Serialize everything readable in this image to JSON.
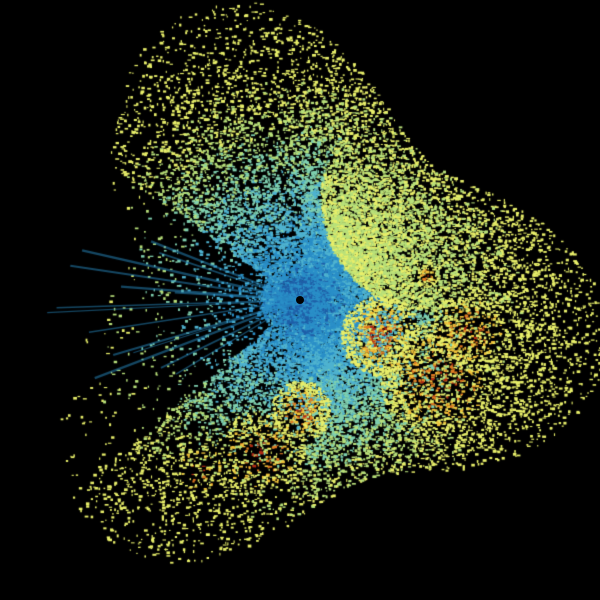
{
  "image": {
    "kind": "radar-scan",
    "background_color": "#000000",
    "palette": [
      "#1f5fa8",
      "#2a8fc8",
      "#4fb3d0",
      "#7fd0b0",
      "#b8e07a",
      "#e8ef6a",
      "#f0c23a",
      "#e07a22",
      "#b02a14",
      "#6e0e0a"
    ]
  }
}
